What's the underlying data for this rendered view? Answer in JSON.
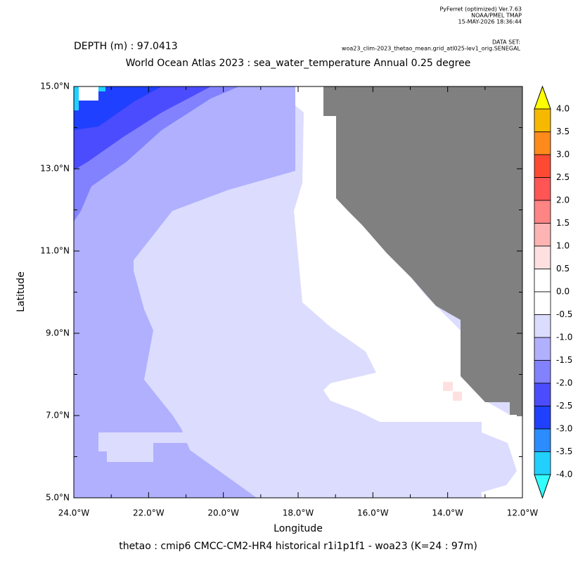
{
  "chart_data": {
    "type": "map",
    "header": [
      "PyFerret (optimized) Ver.7.63",
      "NOAA/PMEL TMAP",
      "15-MAY-2026 18:36:44"
    ],
    "dataset_label": "DATA SET:",
    "dataset": "woa23_clim-2023_thetao_mean.grid_atl025-lev1_orig.SENEGAL",
    "depth": "DEPTH (m) : 97.0413",
    "title": "World Ocean Atlas 2023 : sea_water_temperature Annual  0.25 degree",
    "xlabel": "Longitude",
    "ylabel": "Latitude",
    "footer": "thetao : cmip6 CMCC-CM2-HR4 historical r1i1p1f1 - woa23  (K=24 : 97m)",
    "xlim": [
      -24,
      -12
    ],
    "xticks": [
      {
        "value": -24,
        "label": "24.0°W"
      },
      {
        "value": -22,
        "label": "22.0°W"
      },
      {
        "value": -20,
        "label": "20.0°W"
      },
      {
        "value": -18,
        "label": "18.0°W"
      },
      {
        "value": -16,
        "label": "16.0°W"
      },
      {
        "value": -14,
        "label": "14.0°W"
      },
      {
        "value": -12,
        "label": "12.0°W"
      }
    ],
    "ylim": [
      5,
      15
    ],
    "yticks": [
      {
        "value": 5,
        "label": "5.0°N"
      },
      {
        "value": 7,
        "label": "7.0°N"
      },
      {
        "value": 9,
        "label": "9.0°N"
      },
      {
        "value": 11,
        "label": "11.0°N"
      },
      {
        "value": 13,
        "label": "13.0°N"
      },
      {
        "value": 15,
        "label": "15.0°N"
      }
    ],
    "colorbar": {
      "levels": [
        {
          "value": 4,
          "label": "4.0"
        },
        {
          "value": 3.5,
          "label": "3.5"
        },
        {
          "value": 3,
          "label": "3.0"
        },
        {
          "value": 2.5,
          "label": "2.5"
        },
        {
          "value": 2,
          "label": "2.0"
        },
        {
          "value": 1.5,
          "label": "1.5"
        },
        {
          "value": 1,
          "label": "1.0"
        },
        {
          "value": 0.5,
          "label": "0.5"
        },
        {
          "value": 0,
          "label": "0.0"
        },
        {
          "value": -0.5,
          "label": "-0.5"
        },
        {
          "value": -1,
          "label": "-1.0"
        },
        {
          "value": -1.5,
          "label": "-1.5"
        },
        {
          "value": -2,
          "label": "-2.0"
        },
        {
          "value": -2.5,
          "label": "-2.5"
        },
        {
          "value": -3,
          "label": "-3.0"
        },
        {
          "value": -3.5,
          "label": "-3.5"
        },
        {
          "value": -4,
          "label": "-4.0"
        }
      ],
      "colors": [
        "#f7b900",
        "#ff8a1c",
        "#ff4a33",
        "#ff5555",
        "#ff8484",
        "#ffb4b4",
        "#ffe0e0",
        "#ffffff",
        "#ffffff",
        "#dcdcff",
        "#b0b0ff",
        "#8282ff",
        "#4c4cff",
        "#2040ff",
        "#2a8cff",
        "#22d0ff"
      ],
      "over_color": "#ffff00",
      "under_color": "#33ffff"
    }
  }
}
